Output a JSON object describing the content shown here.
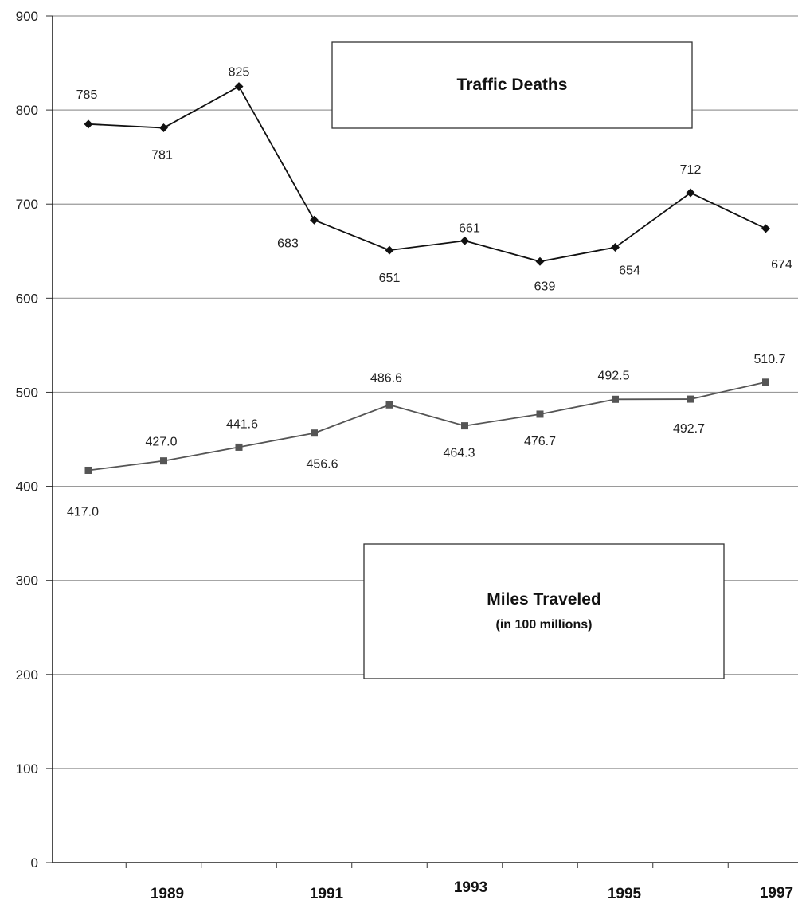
{
  "chart_data": {
    "type": "line",
    "title": "",
    "xlabel": "",
    "ylabel": "",
    "ylim": [
      0,
      900
    ],
    "y_ticks": [
      "0",
      "100",
      "200",
      "300",
      "400",
      "500",
      "600",
      "700",
      "800",
      "900"
    ],
    "x_tick_labels": [
      "1989",
      "1991",
      "1993",
      "1995",
      "1997"
    ],
    "grid": true,
    "series": [
      {
        "key": "traffic_deaths",
        "values": [
          785,
          781,
          825,
          683,
          651,
          661,
          639,
          654,
          712,
          674
        ],
        "labels": [
          "785",
          "781",
          "825",
          "683",
          "651",
          "661",
          "639",
          "654",
          "712",
          "674"
        ],
        "marker": "diamond",
        "color": "#111111"
      },
      {
        "key": "miles_traveled",
        "values": [
          417.0,
          427.0,
          441.6,
          456.6,
          486.6,
          464.3,
          476.7,
          492.5,
          492.7,
          510.7
        ],
        "labels": [
          "417.0",
          "427.0",
          "441.6",
          "456.6",
          "486.6",
          "464.3",
          "476.7",
          "492.5",
          "492.7",
          "510.7"
        ],
        "marker": "square",
        "color": "#555555"
      }
    ],
    "annotations": [
      {
        "key": "traffic_deaths_box",
        "title": "Traffic Deaths",
        "subtitle": ""
      },
      {
        "key": "miles_traveled_box",
        "title": "Miles Traveled",
        "subtitle": "(in 100 millions)"
      }
    ]
  }
}
